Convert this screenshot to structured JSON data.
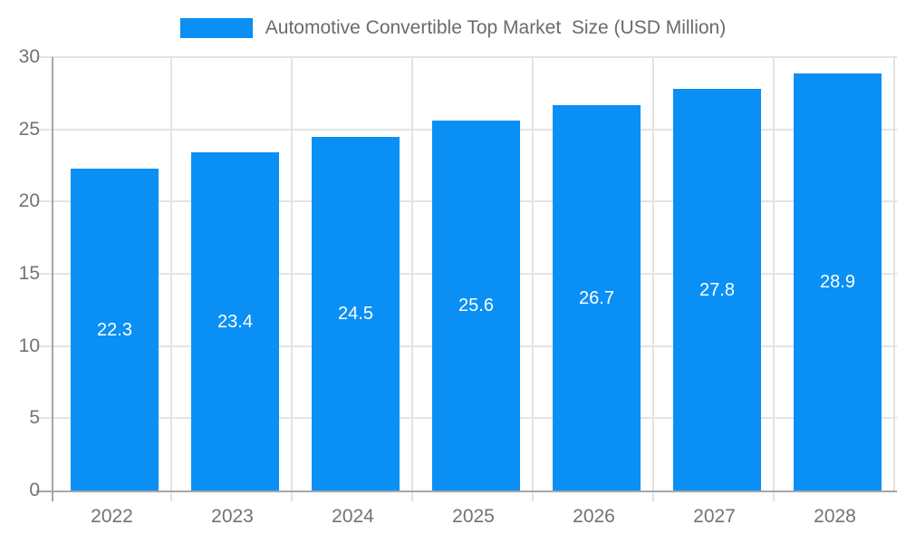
{
  "legend": {
    "label": "Automotive Convertible Top Market  Size (USD Million)"
  },
  "chart_data": {
    "type": "bar",
    "title": "Automotive Convertible Top Market  Size (USD Million)",
    "categories": [
      "2022",
      "2023",
      "2024",
      "2025",
      "2026",
      "2027",
      "2028"
    ],
    "values": [
      22.3,
      23.4,
      24.5,
      25.6,
      26.7,
      27.8,
      28.9
    ],
    "value_labels": [
      "22.3",
      "23.4",
      "24.5",
      "25.6",
      "26.7",
      "27.8",
      "28.9"
    ],
    "xlabel": "",
    "ylabel": "",
    "ylim": [
      0,
      30
    ],
    "yticks": [
      0,
      5,
      10,
      15,
      20,
      25,
      30
    ],
    "grid": true,
    "legend_position": "top",
    "colors": {
      "bar": "#0a8ff5",
      "grid": "#e3e3e3",
      "axis": "#a6a6a6",
      "tick_label": "#737373",
      "title": "#6b6b6b",
      "bar_label": "#ffffff",
      "background": "#ffffff"
    }
  }
}
